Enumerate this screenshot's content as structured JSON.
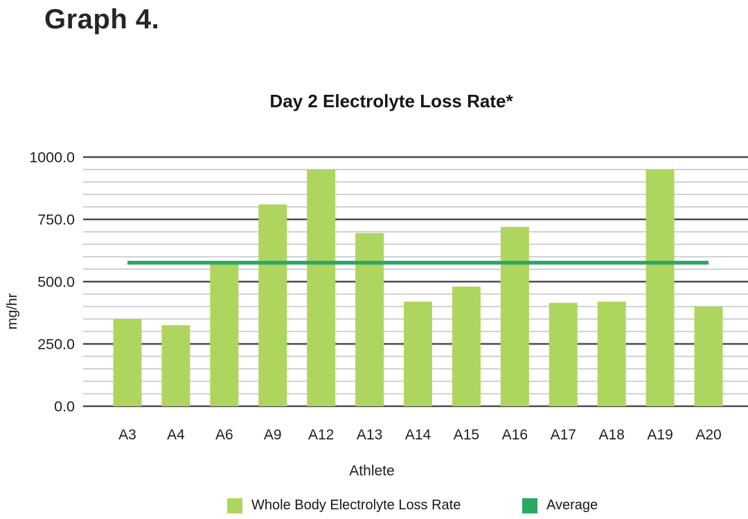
{
  "heading": "Graph 4.",
  "chart_data": {
    "type": "bar",
    "title": "Day 2 Electrolyte Loss Rate*",
    "xlabel": "Athlete",
    "ylabel": "mg/hr",
    "categories": [
      "A3",
      "A4",
      "A6",
      "A9",
      "A12",
      "A13",
      "A14",
      "A15",
      "A16",
      "A17",
      "A18",
      "A19",
      "A20"
    ],
    "series": [
      {
        "name": "Whole Body Electrolyte Loss Rate",
        "type": "bar",
        "color": "#aed65f",
        "values": [
          350,
          325,
          570,
          810,
          950,
          695,
          420,
          480,
          720,
          415,
          420,
          950,
          400
        ]
      },
      {
        "name": "Average",
        "type": "line",
        "color": "#2da766",
        "value": 576
      }
    ],
    "ylim": [
      0,
      1000
    ],
    "ytick_step": 250,
    "minor_grid_step": 50,
    "ytick_labels": [
      "0.0",
      "250.0",
      "500.0",
      "750.0",
      "1000.0"
    ],
    "grid": {
      "minor_color": "#cbcbcb",
      "major_color": "#4a4a4a",
      "on": true
    },
    "legend_position": "bottom",
    "text_color": "#1c1f22"
  }
}
